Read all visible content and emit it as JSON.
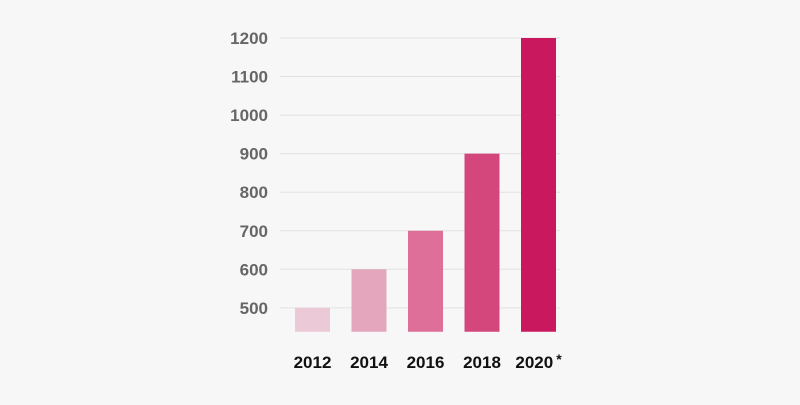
{
  "chart_data": {
    "type": "bar",
    "categories": [
      "2012",
      "2014",
      "2016",
      "2018",
      "2020"
    ],
    "category_markers": [
      "",
      "",
      "",
      "",
      "*"
    ],
    "values": [
      500,
      600,
      700,
      900,
      1200
    ],
    "title": "",
    "xlabel": "",
    "ylabel": "",
    "ylim": [
      438,
      1200
    ],
    "yticks": [
      500,
      600,
      700,
      800,
      900,
      1000,
      1100,
      1200
    ],
    "grid": true,
    "legend": "none",
    "bar_colors": [
      "#ebc9d7",
      "#e3a6bd",
      "#de6f99",
      "#d4477c",
      "#c9185e"
    ]
  }
}
